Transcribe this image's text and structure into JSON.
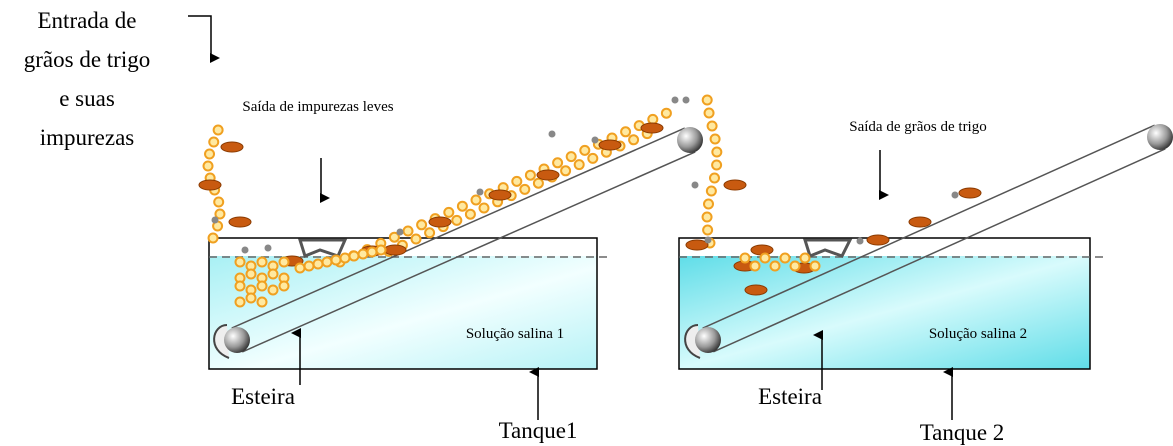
{
  "inlet": {
    "lines": [
      "Entrada de",
      "grãos de trigo",
      "e suas",
      "impurezas"
    ]
  },
  "tanks": [
    {
      "outlet_label": "Saída de impurezas leves",
      "solution_label": "Solução salina 1",
      "belt_label": "Esteira",
      "tank_label": "Tanque1"
    },
    {
      "outlet_label": "Saída de grãos de trigo",
      "solution_label": "Solução salina 2",
      "belt_label": "Esteira",
      "tank_label": "Tanque 2"
    }
  ]
}
